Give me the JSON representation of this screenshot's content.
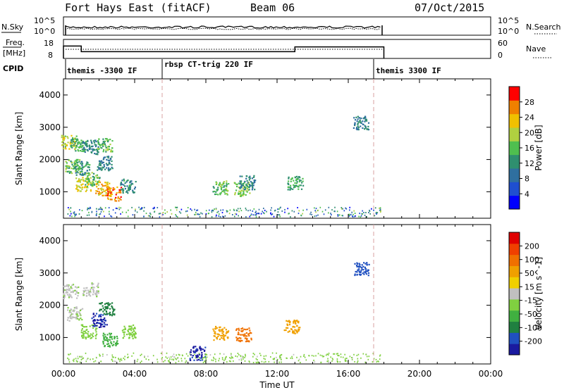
{
  "header": {
    "title": "Fort Hays East (fitACF)",
    "beam": "Beam 06",
    "date": "07/Oct/2015"
  },
  "nsky_panel": {
    "left_label": "N.Sky",
    "right_label": "N.Search",
    "left_ticks": [
      "10^5",
      "10^0"
    ],
    "right_ticks": [
      "10^5",
      "10^0"
    ]
  },
  "freq_panel": {
    "left_label_line1": "Freq.",
    "left_label_line2": "[MHz]",
    "right_label": "Nave",
    "left_ticks": [
      "18",
      "8"
    ],
    "right_ticks": [
      "60",
      "0"
    ],
    "freq_steps": [
      {
        "t0": 0.0,
        "t1": 1.0,
        "mhz": 14.5
      },
      {
        "t0": 1.0,
        "t1": 13.0,
        "mhz": 11.2
      },
      {
        "t0": 13.0,
        "t1": 18.0,
        "mhz": 14.0
      }
    ]
  },
  "cpid": {
    "label": "CPID",
    "segments": [
      {
        "t": 0.0,
        "name": "themis -3300 IF"
      },
      {
        "t": 5.5,
        "name": "rbsp CT-trig 220 IF"
      },
      {
        "t": 17.5,
        "name": "themis 3300 IF"
      }
    ]
  },
  "chart_data": [
    {
      "type": "scatter",
      "title": "",
      "ylabel": "Slant Range [km]",
      "ylim": [
        180,
        4500
      ],
      "xlim": [
        0,
        24
      ],
      "yticks": [
        "1000",
        "2000",
        "3000",
        "4000"
      ],
      "colorbar": {
        "label": "Power [dB]",
        "ticks": [
          "4",
          "8",
          "12",
          "16",
          "20",
          "24",
          "28"
        ],
        "colors": [
          "#0000ff",
          "#1f4fd0",
          "#2f6f9f",
          "#2f8f6f",
          "#4fbf4f",
          "#b0d040",
          "#f0c000",
          "#f08000",
          "#ff0000"
        ]
      },
      "clusters": [
        {
          "t": 0.3,
          "r": 2550,
          "value": 20
        },
        {
          "t": 0.8,
          "r": 2450,
          "value": 14
        },
        {
          "t": 1.5,
          "r": 2400,
          "value": 10
        },
        {
          "t": 2.3,
          "r": 2450,
          "value": 16
        },
        {
          "t": 0.5,
          "r": 1800,
          "value": 16
        },
        {
          "t": 1.0,
          "r": 1750,
          "value": 12
        },
        {
          "t": 2.3,
          "r": 1900,
          "value": 10
        },
        {
          "t": 1.1,
          "r": 1250,
          "value": 22
        },
        {
          "t": 1.6,
          "r": 1400,
          "value": 16
        },
        {
          "t": 2.2,
          "r": 1100,
          "value": 24
        },
        {
          "t": 2.8,
          "r": 950,
          "value": 28
        },
        {
          "t": 3.6,
          "r": 1200,
          "value": 12
        },
        {
          "t": 8.8,
          "r": 1150,
          "value": 16
        },
        {
          "t": 10.0,
          "r": 1100,
          "value": 18
        },
        {
          "t": 10.3,
          "r": 1300,
          "value": 10
        },
        {
          "t": 13.0,
          "r": 1300,
          "value": 14
        },
        {
          "t": 16.7,
          "r": 3150,
          "value": 10
        }
      ]
    },
    {
      "type": "scatter",
      "title": "",
      "ylabel": "Slant Range [km]",
      "xlabel": "Time UT",
      "ylim": [
        180,
        4500
      ],
      "xlim": [
        0,
        24
      ],
      "yticks": [
        "1000",
        "2000",
        "3000",
        "4000"
      ],
      "xticks": [
        "00:00",
        "04:00",
        "08:00",
        "12:00",
        "16:00",
        "20:00",
        "00:00"
      ],
      "colorbar": {
        "label": "Velocity [m s^-1]",
        "ticks": [
          "200",
          "100",
          "50",
          "15",
          "-15",
          "-50",
          "-100",
          "-200"
        ],
        "colors": [
          "#1a1aa0",
          "#2050c0",
          "#208040",
          "#40b040",
          "#80d040",
          "#c0c0c0",
          "#f0d000",
          "#f0a000",
          "#f07000",
          "#f04000",
          "#e00000"
        ]
      },
      "clusters": [
        {
          "t": 0.4,
          "r": 2450,
          "value": 0
        },
        {
          "t": 1.5,
          "r": 2500,
          "value": 0
        },
        {
          "t": 0.6,
          "r": 1750,
          "value": 0
        },
        {
          "t": 1.4,
          "r": 1200,
          "value": 30
        },
        {
          "t": 2.0,
          "r": 1550,
          "value": 180
        },
        {
          "t": 2.4,
          "r": 1900,
          "value": 120
        },
        {
          "t": 2.6,
          "r": 950,
          "value": 60
        },
        {
          "t": 3.6,
          "r": 1200,
          "value": 40
        },
        {
          "t": 8.8,
          "r": 1150,
          "value": -120
        },
        {
          "t": 10.1,
          "r": 1100,
          "value": -150
        },
        {
          "t": 12.8,
          "r": 1350,
          "value": -90
        },
        {
          "t": 16.7,
          "r": 3150,
          "value": 150
        },
        {
          "t": 7.5,
          "r": 530,
          "value": 180
        }
      ]
    }
  ]
}
